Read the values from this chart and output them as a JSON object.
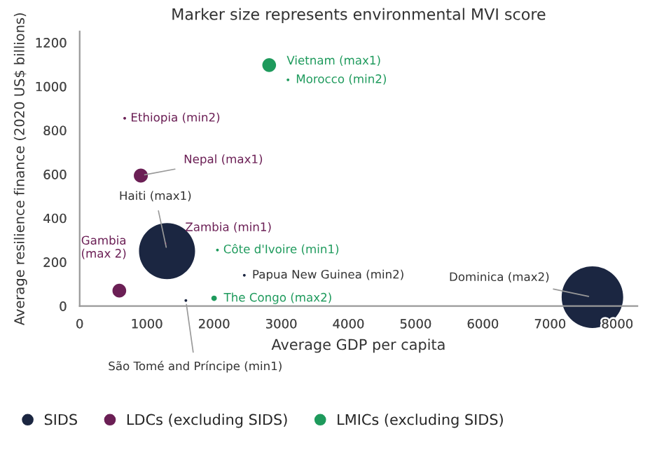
{
  "chart_data": {
    "type": "bubble",
    "title": "Marker size represents environmental MVI score",
    "xlabel": "Average GDP per capita",
    "ylabel": "Average resilience finance (2020 US$ billions)",
    "xlim": [
      0,
      8300
    ],
    "xticks": [
      0,
      1000,
      2000,
      3000,
      4000,
      5000,
      6000,
      7000,
      8000
    ],
    "ylim": [
      0,
      1250
    ],
    "yticks": [
      0,
      200,
      400,
      600,
      800,
      1000,
      1200
    ],
    "grid": false,
    "legend": "bottom",
    "marker": "circle",
    "series": [
      {
        "name": "SIDS",
        "color": "#1b2641",
        "x": [
          1300,
          1580,
          2450,
          7630
        ],
        "values": [
          250,
          25,
          140,
          40
        ],
        "sizes": [
          0.83,
          0.002,
          0.002,
          1
        ]
      },
      {
        "name": "LDCs (excluding SIDS)",
        "color": "#6b1f55",
        "x": [
          670,
          910,
          590,
          1280
        ],
        "values": [
          855,
          594,
          70,
          285
        ],
        "sizes": [
          0.002,
          0.052,
          0.05,
          0.001
        ]
      },
      {
        "name": "LMICs (excluding SIDS)",
        "color": "#1e9a5c",
        "x": [
          2820,
          3100,
          2050,
          2000
        ],
        "values": [
          1097,
          1030,
          255,
          35
        ],
        "sizes": [
          0.05,
          0.002,
          0.002,
          0.008
        ]
      }
    ],
    "annotations": [
      {
        "text": "Haiti (max1)",
        "x": 1300,
        "y": 250
      },
      {
        "text": "São Tomé and Príncipe (min1)",
        "x": 1580,
        "y": 25
      },
      {
        "text": "Papua New Guinea (min2)",
        "x": 2450,
        "y": 140
      },
      {
        "text": "Dominica (max2)",
        "x": 7630,
        "y": 40
      },
      {
        "text": "Ethiopia (min2)",
        "x": 670,
        "y": 855
      },
      {
        "text": "Nepal (max1)",
        "x": 910,
        "y": 594
      },
      {
        "text": "Gambia\n(max 2)",
        "x": 590,
        "y": 70
      },
      {
        "text": "Zambia (min1)",
        "x": 1280,
        "y": 285
      },
      {
        "text": "Vietnam (max1)",
        "x": 2820,
        "y": 1097
      },
      {
        "text": "Morocco (min2)",
        "x": 3100,
        "y": 1030
      },
      {
        "text": "Côte d'Ivoire (min1)",
        "x": 2050,
        "y": 255
      },
      {
        "text": "The Congo (max2)",
        "x": 2000,
        "y": 35
      }
    ]
  }
}
